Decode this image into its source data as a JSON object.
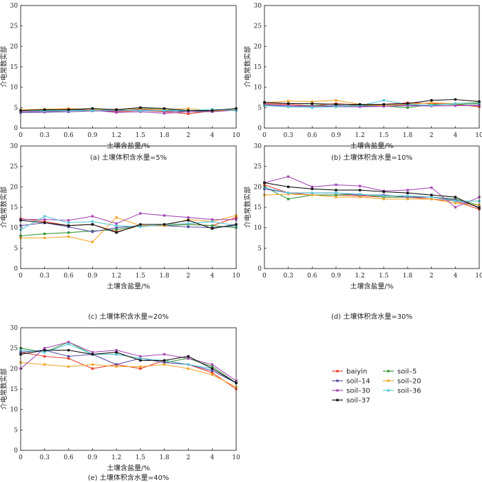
{
  "figure": {
    "series_names": [
      "baiyin",
      "soil–5",
      "soil–14",
      "soil–20",
      "soil–30",
      "soil–36",
      "soil–37"
    ],
    "series_colors": [
      "#e8412e",
      "#3a9a3a",
      "#5b4ea6",
      "#f0a830",
      "#a64ab4",
      "#5ac8d8",
      "#111111"
    ]
  },
  "chart_data": [
    {
      "type": "line",
      "caption": "(a) 土壤体积含水量=5%",
      "xlabel": "土壤含盐量/%",
      "ylabel": "介电常数实部",
      "categories": [
        "0",
        "0.3",
        "0.6",
        "0.9",
        "1.2",
        "1.5",
        "1.8",
        "2",
        "4",
        "10"
      ],
      "ylim": [
        0,
        30
      ],
      "yticks": [
        0,
        5,
        10,
        15,
        20,
        25,
        30
      ],
      "series": [
        {
          "name": "baiyin",
          "values": [
            4.2,
            4.3,
            4.6,
            4.4,
            4.0,
            4.3,
            4.0,
            3.5,
            4.2,
            4.5
          ]
        },
        {
          "name": "soil–5",
          "values": [
            4.0,
            4.4,
            4.4,
            4.6,
            4.5,
            4.8,
            4.6,
            4.0,
            4.3,
            4.5
          ]
        },
        {
          "name": "soil–14",
          "values": [
            3.8,
            3.9,
            4.0,
            4.2,
            4.2,
            4.5,
            4.2,
            4.0,
            4.1,
            4.4
          ]
        },
        {
          "name": "soil–20",
          "values": [
            4.5,
            4.6,
            4.8,
            4.5,
            4.6,
            4.7,
            4.5,
            4.8,
            4.2,
            4.4
          ]
        },
        {
          "name": "soil–30",
          "values": [
            4.1,
            4.0,
            4.3,
            4.4,
            3.8,
            4.0,
            3.6,
            4.0,
            4.0,
            4.4
          ]
        },
        {
          "name": "soil–36",
          "values": [
            4.3,
            4.2,
            4.3,
            4.3,
            4.5,
            4.2,
            4.3,
            4.3,
            4.6,
            4.3
          ]
        },
        {
          "name": "soil–37",
          "values": [
            4.3,
            4.5,
            4.5,
            4.8,
            4.5,
            5.0,
            4.8,
            4.3,
            4.3,
            4.8
          ]
        }
      ]
    },
    {
      "type": "line",
      "caption": "(b) 土壤体积含水量=10%",
      "xlabel": "土壤含盐量/%",
      "ylabel": "介电常数实部",
      "categories": [
        "0",
        "0.3",
        "0.6",
        "0.9",
        "1.2",
        "1.5",
        "1.8",
        "2",
        "4",
        "10"
      ],
      "ylim": [
        0,
        30
      ],
      "yticks": [
        0,
        5,
        10,
        15,
        20,
        25,
        30
      ],
      "series": [
        {
          "name": "baiyin",
          "values": [
            6.0,
            5.8,
            5.5,
            6.0,
            5.6,
            5.8,
            6.2,
            6.0,
            5.8,
            5.2
          ]
        },
        {
          "name": "soil–5",
          "values": [
            5.6,
            5.4,
            5.6,
            5.4,
            5.6,
            5.4,
            5.0,
            5.8,
            5.8,
            6.0
          ]
        },
        {
          "name": "soil–14",
          "values": [
            5.5,
            5.4,
            5.3,
            5.5,
            5.4,
            5.4,
            5.6,
            5.5,
            5.5,
            5.6
          ]
        },
        {
          "name": "soil–20",
          "values": [
            6.2,
            6.6,
            6.5,
            6.8,
            5.8,
            5.5,
            5.8,
            6.2,
            6.0,
            6.3
          ]
        },
        {
          "name": "soil–30",
          "values": [
            5.8,
            5.5,
            5.4,
            5.2,
            5.2,
            5.3,
            5.5,
            5.4,
            5.5,
            5.5
          ]
        },
        {
          "name": "soil–36",
          "values": [
            5.5,
            5.2,
            5.0,
            5.2,
            5.5,
            6.8,
            5.8,
            5.6,
            6.0,
            6.2
          ]
        },
        {
          "name": "soil–37",
          "values": [
            6.3,
            6.0,
            6.0,
            5.8,
            5.8,
            5.8,
            6.0,
            6.8,
            7.0,
            6.5
          ]
        }
      ]
    },
    {
      "type": "line",
      "caption": "(c) 土壤体积含水量=20%",
      "xlabel": "土壤含盐量/%",
      "ylabel": "介电常数实部",
      "categories": [
        "0",
        "0.3",
        "0.6",
        "0.9",
        "1.2",
        "1.5",
        "1.8",
        "2",
        "4",
        "10"
      ],
      "ylim": [
        0,
        30
      ],
      "yticks": [
        0,
        5,
        10,
        15,
        20,
        25,
        30
      ],
      "series": [
        {
          "name": "baiyin",
          "values": [
            12.2,
            11.5,
            10.5,
            10.8,
            9.0,
            10.5,
            10.5,
            10.8,
            10.5,
            12.5
          ]
        },
        {
          "name": "soil–5",
          "values": [
            8.0,
            8.5,
            8.8,
            9.2,
            9.5,
            10.5,
            10.5,
            10.8,
            10.5,
            10.0
          ]
        },
        {
          "name": "soil–14",
          "values": [
            10.5,
            11.2,
            10.2,
            9.0,
            10.0,
            10.5,
            10.5,
            10.2,
            10.0,
            10.5
          ]
        },
        {
          "name": "soil–20",
          "values": [
            7.5,
            7.5,
            7.8,
            6.5,
            12.5,
            10.5,
            10.5,
            12.0,
            11.5,
            13.0
          ]
        },
        {
          "name": "soil–30",
          "values": [
            12.0,
            12.0,
            11.8,
            12.8,
            11.0,
            13.5,
            13.0,
            12.5,
            12.0,
            12.0
          ]
        },
        {
          "name": "soil–36",
          "values": [
            9.5,
            12.8,
            11.2,
            11.5,
            10.5,
            10.2,
            10.8,
            11.0,
            11.5,
            10.5
          ]
        },
        {
          "name": "soil–37",
          "values": [
            11.8,
            11.2,
            10.5,
            10.8,
            8.8,
            10.8,
            10.8,
            11.8,
            9.8,
            10.8
          ]
        }
      ]
    },
    {
      "type": "line",
      "caption": "(d) 土壤体积含水量=30%",
      "xlabel": "土壤含盐量/%",
      "ylabel": "介电常数实部",
      "categories": [
        "0",
        "0.3",
        "0.6",
        "0.9",
        "1.2",
        "1.5",
        "1.8",
        "2",
        "4",
        "10"
      ],
      "ylim": [
        0,
        30
      ],
      "yticks": [
        0,
        5,
        10,
        15,
        20,
        25,
        30
      ],
      "series": [
        {
          "name": "baiyin",
          "values": [
            20.5,
            18.5,
            18.0,
            18.0,
            17.8,
            17.5,
            17.5,
            17.0,
            16.5,
            14.5
          ]
        },
        {
          "name": "soil–5",
          "values": [
            20.0,
            17.0,
            18.0,
            18.0,
            18.2,
            17.5,
            17.5,
            17.5,
            17.0,
            15.5
          ]
        },
        {
          "name": "soil–14",
          "values": [
            19.5,
            18.5,
            18.5,
            18.5,
            18.0,
            18.0,
            17.5,
            17.5,
            16.8,
            15.0
          ]
        },
        {
          "name": "soil–20",
          "values": [
            18.0,
            18.2,
            18.0,
            17.5,
            17.5,
            17.0,
            17.0,
            17.0,
            16.0,
            15.5
          ]
        },
        {
          "name": "soil–30",
          "values": [
            21.0,
            22.5,
            20.0,
            20.5,
            20.2,
            19.0,
            19.2,
            19.8,
            15.0,
            17.5
          ]
        },
        {
          "name": "soil–36",
          "values": [
            19.8,
            18.5,
            18.5,
            18.5,
            18.2,
            17.8,
            17.8,
            17.5,
            16.5,
            16.5
          ]
        },
        {
          "name": "soil–37",
          "values": [
            21.0,
            20.0,
            19.5,
            19.2,
            19.2,
            18.8,
            18.5,
            18.0,
            17.5,
            14.8
          ]
        }
      ]
    },
    {
      "type": "line",
      "caption": "(e) 土壤体积含水量=40%",
      "xlabel": "土壤含盐量/%",
      "ylabel": "介电常数实部",
      "categories": [
        "0",
        "0.3",
        "0.6",
        "0.9",
        "1.2",
        "1.5",
        "1.8",
        "2",
        "4",
        "10"
      ],
      "ylim": [
        0,
        30
      ],
      "yticks": [
        0,
        5,
        10,
        15,
        20,
        25,
        30
      ],
      "series": [
        {
          "name": "baiyin",
          "values": [
            24.0,
            23.0,
            22.5,
            20.0,
            21.0,
            20.0,
            22.0,
            21.0,
            19.0,
            15.0
          ]
        },
        {
          "name": "soil–5",
          "values": [
            25.0,
            24.0,
            26.5,
            23.5,
            23.5,
            22.5,
            21.5,
            22.5,
            20.5,
            16.5
          ]
        },
        {
          "name": "soil–14",
          "values": [
            24.0,
            24.5,
            23.0,
            23.5,
            21.0,
            22.5,
            21.5,
            21.0,
            19.5,
            16.5
          ]
        },
        {
          "name": "soil–20",
          "values": [
            21.5,
            21.0,
            20.5,
            21.0,
            20.5,
            20.5,
            21.0,
            20.0,
            18.5,
            15.5
          ]
        },
        {
          "name": "soil–30",
          "values": [
            20.0,
            25.0,
            26.5,
            24.0,
            24.5,
            23.0,
            23.5,
            22.5,
            21.0,
            17.0
          ]
        },
        {
          "name": "soil–36",
          "values": [
            24.5,
            24.0,
            26.0,
            23.5,
            23.5,
            22.5,
            22.0,
            21.0,
            20.0,
            16.5
          ]
        },
        {
          "name": "soil–37",
          "values": [
            23.5,
            24.5,
            24.5,
            23.5,
            24.0,
            22.0,
            22.0,
            23.0,
            20.0,
            16.5
          ]
        }
      ]
    }
  ]
}
